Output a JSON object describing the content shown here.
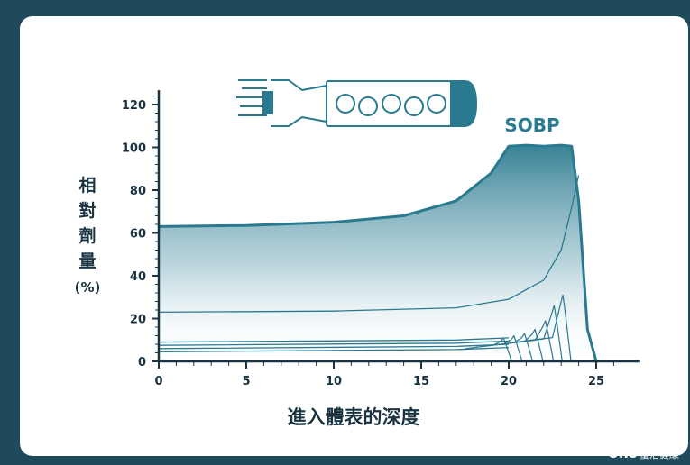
{
  "chart_data": {
    "type": "line",
    "title": "",
    "ylabel": "相對劑量(%)",
    "xlabel": "進入體表的深度",
    "annotation": "SOBP",
    "xlim": [
      0,
      27
    ],
    "ylim": [
      0,
      125
    ],
    "x_ticks": [
      0,
      5,
      10,
      15,
      20,
      25
    ],
    "y_ticks": [
      0,
      20,
      40,
      60,
      80,
      100,
      120
    ],
    "colors": {
      "accent": "#2a7a8f",
      "axis": "#1a3340",
      "label": "#1a3340"
    },
    "series": [
      {
        "points": [
          [
            0,
            63
          ],
          [
            5,
            63.5
          ],
          [
            10,
            65
          ],
          [
            14,
            68
          ],
          [
            17,
            75
          ],
          [
            19,
            88
          ],
          [
            20,
            100.5
          ],
          [
            21,
            101
          ],
          [
            22,
            100.5
          ],
          [
            23,
            101
          ],
          [
            23.6,
            100.5
          ],
          [
            24,
            75
          ],
          [
            24.5,
            15
          ],
          [
            25,
            0
          ]
        ]
      },
      {
        "points": [
          [
            0,
            23
          ],
          [
            10,
            23.5
          ],
          [
            17,
            25
          ],
          [
            20,
            29
          ],
          [
            22,
            38
          ],
          [
            23,
            52
          ],
          [
            23.6,
            72
          ],
          [
            24.0,
            87
          ]
        ]
      },
      {
        "points": [
          [
            0,
            9
          ],
          [
            17,
            10
          ],
          [
            20,
            11
          ]
        ]
      },
      {
        "points": [
          [
            0,
            7.5
          ],
          [
            17,
            8.5
          ],
          [
            20,
            9.5
          ]
        ]
      },
      {
        "points": [
          [
            0,
            6
          ],
          [
            17,
            7
          ],
          [
            20,
            8
          ]
        ]
      },
      {
        "points": [
          [
            0,
            4.5
          ],
          [
            17,
            5.5
          ],
          [
            20,
            6.5
          ]
        ]
      }
    ],
    "bragg_peaks": [
      {
        "x": 19.7,
        "peak": 11
      },
      {
        "x": 20.3,
        "peak": 12
      },
      {
        "x": 20.9,
        "peak": 13
      },
      {
        "x": 21.5,
        "peak": 15
      },
      {
        "x": 22.1,
        "peak": 19
      },
      {
        "x": 22.6,
        "peak": 26
      },
      {
        "x": 23.1,
        "peak": 31
      }
    ]
  },
  "watermark": {
    "brand": "Uho",
    "text": "優活健康"
  }
}
